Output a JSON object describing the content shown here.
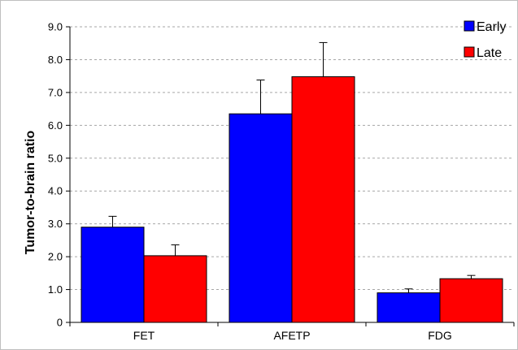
{
  "chart_data": {
    "type": "bar",
    "title": "",
    "xlabel": "",
    "ylabel": "Tumor-to-brain ratio",
    "ylim": [
      0,
      9
    ],
    "y_ticks": [
      "0",
      "1.0",
      "2.0",
      "3.0",
      "4.0",
      "5.0",
      "6.0",
      "7.0",
      "8.0",
      "9.0"
    ],
    "categories": [
      "FET",
      "AFETP",
      "FDG"
    ],
    "series": [
      {
        "name": "Early",
        "color": "#0000ff",
        "values": [
          2.9,
          6.35,
          0.9
        ],
        "errors": [
          0.33,
          1.03,
          0.12
        ]
      },
      {
        "name": "Late",
        "color": "#ff0000",
        "values": [
          2.03,
          7.48,
          1.33
        ],
        "errors": [
          0.33,
          1.04,
          0.1
        ]
      }
    ],
    "grid": true,
    "legend_position": "top-right",
    "error_bars": true
  }
}
